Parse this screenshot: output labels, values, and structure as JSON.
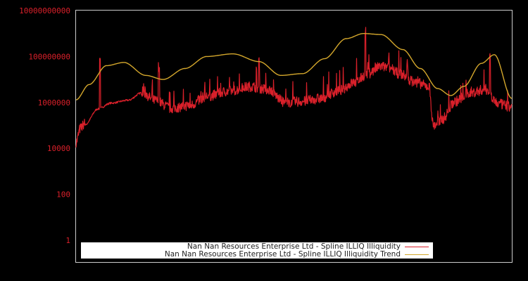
{
  "chart_data": {
    "type": "line",
    "title": "",
    "xlabel": "",
    "ylabel": "",
    "y_scale": "log",
    "ylim": [
      1,
      10000000000
    ],
    "y_ticks": [
      "10000000000",
      "100000000",
      "1000000",
      "10000",
      "100",
      "1"
    ],
    "x_ticks": [],
    "grid": false,
    "legend_position": "bottom-center inside plot",
    "background": "#000000",
    "series": [
      {
        "name": "Nan Nan Resources Enterprise Ltd - Spline ILLIQ Illiquidity",
        "color": "#d9202a",
        "description": "noisy daily series, approx values by position fraction (0=left,1=right)",
        "x": [
          0.0,
          0.01,
          0.02,
          0.05,
          0.08,
          0.12,
          0.15,
          0.18,
          0.22,
          0.26,
          0.3,
          0.35,
          0.4,
          0.44,
          0.48,
          0.52,
          0.56,
          0.6,
          0.64,
          0.67,
          0.7,
          0.72,
          0.74,
          0.78,
          0.81,
          0.82,
          0.84,
          0.87,
          0.9,
          0.94,
          0.97,
          1.0
        ],
        "values": [
          15000,
          60000,
          100000,
          500000,
          900000,
          1200000,
          2500000,
          1000000,
          450000,
          600000,
          1500000,
          2500000,
          4000000,
          3000000,
          800000,
          900000,
          1200000,
          2500000,
          6000000,
          15000000,
          30000000,
          25000000,
          15000000,
          6000000,
          4000000,
          80000,
          150000,
          900000,
          2000000,
          3000000,
          700000,
          500000
        ],
        "spikes": [
          {
            "x": 0.055,
            "value": 80000000
          },
          {
            "x": 0.19,
            "value": 30000000
          },
          {
            "x": 0.42,
            "value": 50000000
          },
          {
            "x": 0.664,
            "value": 1000000000
          },
          {
            "x": 0.76,
            "value": 40000000
          },
          {
            "x": 0.95,
            "value": 80000000
          }
        ]
      },
      {
        "name": "Nan Nan Resources Enterprise Ltd - Spline ILLIQ Illiquidity Trend",
        "color": "#d4a72c",
        "x": [
          0.0,
          0.03,
          0.07,
          0.11,
          0.16,
          0.2,
          0.25,
          0.3,
          0.36,
          0.42,
          0.47,
          0.52,
          0.57,
          0.62,
          0.66,
          0.7,
          0.75,
          0.79,
          0.83,
          0.86,
          0.89,
          0.93,
          0.96,
          1.0
        ],
        "values": [
          1300000,
          6000000,
          40000000,
          55000000,
          15000000,
          10000000,
          30000000,
          100000000,
          130000000,
          60000000,
          15000000,
          18000000,
          80000000,
          600000000,
          1000000000,
          900000000,
          200000000,
          30000000,
          4000000,
          2000000,
          5000000,
          50000000,
          120000000,
          1500000
        ]
      }
    ]
  },
  "legend": {
    "items": [
      {
        "label": "Nan Nan Resources Enterprise Ltd - Spline ILLIQ Illiquidity",
        "color": "#d9202a"
      },
      {
        "label": "Nan Nan Resources Enterprise Ltd - Spline ILLIQ Illiquidity Trend",
        "color": "#d4a72c"
      }
    ]
  }
}
